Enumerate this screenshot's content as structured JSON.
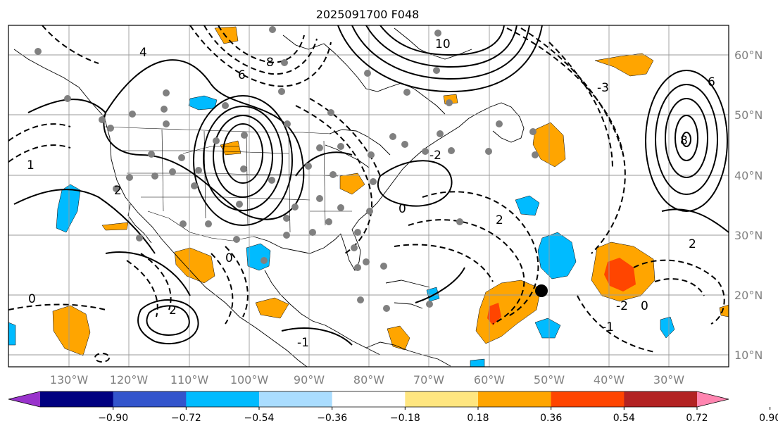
{
  "title": "2025091700 F048",
  "lon_labels": [
    "130°W",
    "120°W",
    "110°W",
    "100°W",
    "90°W",
    "80°W",
    "70°W",
    "60°W",
    "50°W",
    "40°W",
    "30°W"
  ],
  "lat_labels": [
    "60°N",
    "50°N",
    "40°N",
    "30°N",
    "20°N",
    "10°N"
  ],
  "colorbar": {
    "ticks": [
      "−0.90",
      "−0.72",
      "−0.54",
      "−0.36",
      "−0.18",
      "0.18",
      "0.36",
      "0.54",
      "0.72",
      "0.90"
    ],
    "colors": [
      "#9933cc",
      "#000080",
      "#3355cc",
      "#00bbff",
      "#aaddff",
      "#ffffff",
      "#ffe680",
      "#ffa500",
      "#ff4500",
      "#b22222",
      "#ff85b0"
    ]
  },
  "shading_colors": {
    "pos_light": "#ffa500",
    "pos_mid": "#ff4500",
    "neg_light": "#00bbff",
    "neg_pale": "#aaddff"
  },
  "contour_labels": {
    "c1": "10",
    "c2": "8",
    "c3": "6",
    "c4": "4",
    "c5": "2",
    "c6": "0",
    "c7": "-1",
    "c8": "-2",
    "c9": "-3",
    "c10": "8",
    "c11": "6",
    "c12": "2",
    "c13": "0",
    "c14": "2",
    "c15": "-1",
    "c16": "1",
    "c17": "0",
    "c18": "-2",
    "c19": "0",
    "c20": "2"
  }
}
